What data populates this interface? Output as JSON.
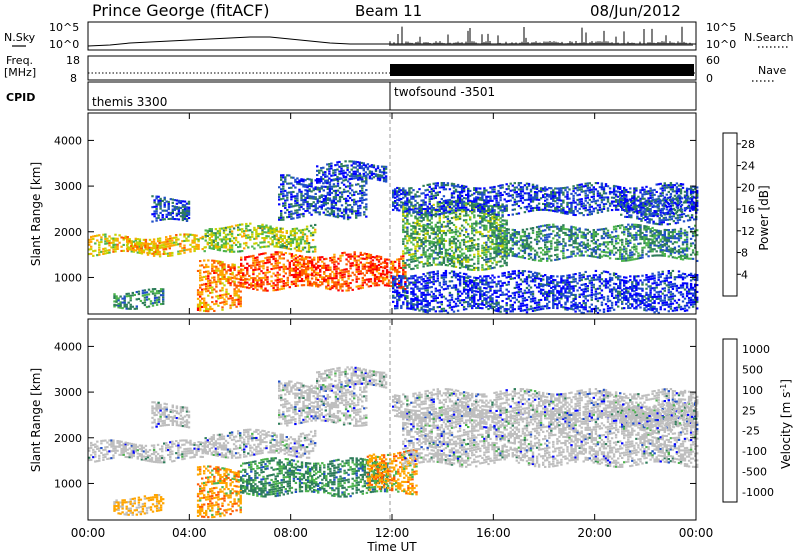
{
  "header": {
    "station": "Prince George (fitACF)",
    "beam": "Beam 11",
    "date": "08/Jun/2012"
  },
  "top_panels": {
    "nsky_label": "N.Sky",
    "nsky_ticks": [
      "10^5",
      "10^0"
    ],
    "nsearch_label": "N.Search",
    "nsearch_ticks": [
      "10^5",
      "10^0"
    ],
    "freq_label": "Freq.",
    "freq_unit": "[MHz]",
    "freq_ticks": [
      "18",
      "8"
    ],
    "nave_label": "Nave",
    "nave_ticks": [
      "60",
      "0"
    ],
    "cpid_label": "CPID",
    "cpid_segments": [
      {
        "name": "themis 3300",
        "start_hour": 0,
        "end_hour": 12
      },
      {
        "name": "twofsound -3501",
        "start_hour": 12,
        "end_hour": 24
      }
    ]
  },
  "chart_data": [
    {
      "type": "heatmap",
      "quantity": "Power",
      "ylabel": "Slant Range [km]",
      "xlabel": "Time UT",
      "x_ticks": [
        "00:00",
        "04:00",
        "08:00",
        "12:00",
        "16:00",
        "20:00",
        "00:00"
      ],
      "xlim": [
        0,
        24
      ],
      "ylim": [
        200,
        4600
      ],
      "y_ticks": [
        1000,
        2000,
        3000,
        4000
      ],
      "colorbar": {
        "label": "Power [dB]",
        "range": [
          0,
          30
        ],
        "ticks": [
          4,
          8,
          12,
          16,
          20,
          24,
          28
        ],
        "colors": [
          "#0000ff",
          "#1f4ec8",
          "#2e7d5a",
          "#4cb34c",
          "#c8d200",
          "#ffa500",
          "#ff5a00",
          "#ff0000"
        ]
      },
      "echo_bands": [
        {
          "t0": 0.0,
          "t1": 4.6,
          "r0": 1500,
          "r1": 1900,
          "level": 18
        },
        {
          "t0": 1.5,
          "t1": 3.2,
          "r0": 1550,
          "r1": 1800,
          "level": 20
        },
        {
          "t0": 4.6,
          "t1": 9.0,
          "r0": 1600,
          "r1": 2100,
          "level": 15
        },
        {
          "t0": 2.5,
          "t1": 4.0,
          "r0": 2200,
          "r1": 2700,
          "level": 6
        },
        {
          "t0": 1.0,
          "t1": 3.0,
          "r0": 350,
          "r1": 700,
          "level": 10
        },
        {
          "t0": 4.3,
          "t1": 6.0,
          "r0": 300,
          "r1": 1300,
          "level": 22
        },
        {
          "t0": 6.0,
          "t1": 12.5,
          "r0": 750,
          "r1": 1500,
          "level": 25
        },
        {
          "t0": 7.5,
          "t1": 11.0,
          "r0": 2300,
          "r1": 3200,
          "level": 6
        },
        {
          "t0": 9.0,
          "t1": 11.8,
          "r0": 3100,
          "r1": 3500,
          "level": 5
        },
        {
          "t0": 12.4,
          "t1": 16.5,
          "r0": 1200,
          "r1": 2600,
          "level": 12
        },
        {
          "t0": 16.0,
          "t1": 24.0,
          "r0": 1400,
          "r1": 2100,
          "level": 10
        },
        {
          "t0": 12.0,
          "t1": 24.0,
          "r0": 2400,
          "r1": 3000,
          "level": 5
        },
        {
          "t0": 12.0,
          "t1": 24.0,
          "r0": 250,
          "r1": 1100,
          "level": 4
        },
        {
          "t0": 21.0,
          "t1": 24.0,
          "r0": 2200,
          "r1": 2700,
          "level": 6
        }
      ]
    },
    {
      "type": "heatmap",
      "quantity": "Velocity",
      "ylabel": "Slant Range [km]",
      "xlabel": "Time UT",
      "x_ticks": [
        "00:00",
        "04:00",
        "08:00",
        "12:00",
        "16:00",
        "20:00",
        "00:00"
      ],
      "xlim": [
        0,
        24
      ],
      "ylim": [
        200,
        4600
      ],
      "y_ticks": [
        1000,
        2000,
        3000,
        4000
      ],
      "colorbar": {
        "label": "Velocity [m s",
        "label_superscript": "-1",
        "label_close": "]",
        "ticks": [
          "1000",
          "500",
          "100",
          "25",
          "-25",
          "-100",
          "-500",
          "-1000"
        ],
        "colors": [
          "#0000ff",
          "#1f4ec8",
          "#2e7d5a",
          "#4cb34c",
          "#bebebe",
          "#ffa500",
          "#ff5a00",
          "#ff0000"
        ]
      },
      "echo_bands": [
        {
          "t0": 0.0,
          "t1": 4.6,
          "r0": 1500,
          "r1": 1900,
          "level": "ground"
        },
        {
          "t0": 4.6,
          "t1": 9.0,
          "r0": 1600,
          "r1": 2100,
          "level": "ground"
        },
        {
          "t0": 2.5,
          "t1": 4.0,
          "r0": 2200,
          "r1": 2700,
          "level": "ground"
        },
        {
          "t0": 1.0,
          "t1": 3.0,
          "r0": 350,
          "r1": 700,
          "level": "away_weak"
        },
        {
          "t0": 4.3,
          "t1": 6.0,
          "r0": 300,
          "r1": 1300,
          "level": "away"
        },
        {
          "t0": 6.0,
          "t1": 11.8,
          "r0": 750,
          "r1": 1500,
          "level": "toward"
        },
        {
          "t0": 11.0,
          "t1": 13.0,
          "r0": 800,
          "r1": 1700,
          "level": "away"
        },
        {
          "t0": 7.5,
          "t1": 11.0,
          "r0": 2300,
          "r1": 3200,
          "level": "ground"
        },
        {
          "t0": 9.0,
          "t1": 11.8,
          "r0": 3100,
          "r1": 3500,
          "level": "ground"
        },
        {
          "t0": 12.4,
          "t1": 24.0,
          "r0": 1400,
          "r1": 2600,
          "level": "ground"
        },
        {
          "t0": 12.0,
          "t1": 24.0,
          "r0": 2400,
          "r1": 3000,
          "level": "ground"
        },
        {
          "t0": 21.0,
          "t1": 24.0,
          "r0": 2200,
          "r1": 2700,
          "level": "ground"
        }
      ]
    }
  ]
}
